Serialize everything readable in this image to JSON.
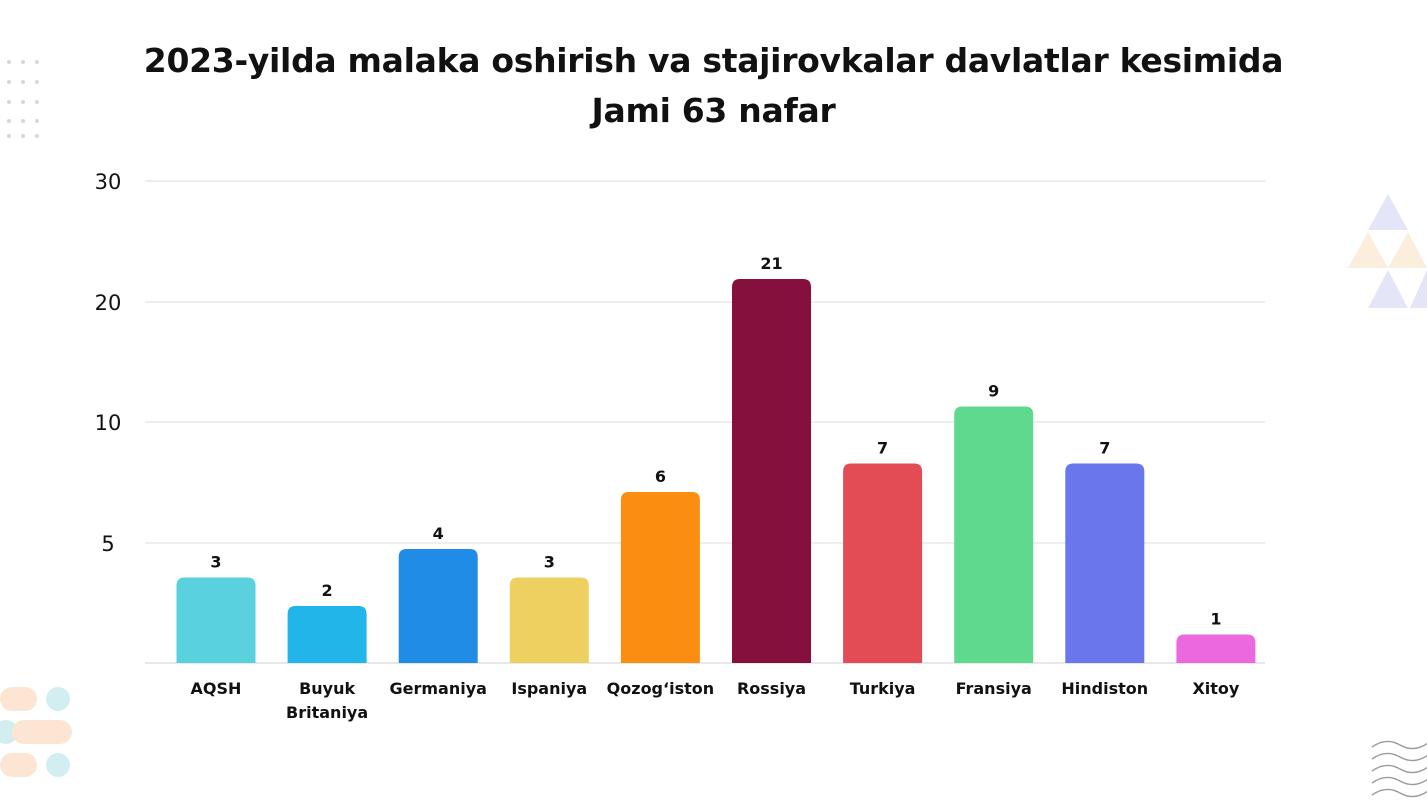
{
  "title_line1": "2023-yilda malaka oshirish va stajirovkalar davlatlar kesimida",
  "title_line2": "Jami 63 nafar",
  "chart_data": {
    "type": "bar",
    "title": "2023-yilda malaka oshirish va stajirovkalar davlatlar kesimida",
    "subtitle": "Jami 63 nafar",
    "categories": [
      "AQSH",
      "Buyuk Britaniya",
      "Germaniya",
      "Ispaniya",
      "Qozog‘iston",
      "Rossiya",
      "Turkiya",
      "Fransiya",
      "Hindiston",
      "Xitoy"
    ],
    "values": [
      3,
      2,
      4,
      3,
      6,
      21,
      7,
      9,
      7,
      1
    ],
    "data_labels": [
      "3",
      "2",
      "4",
      "3",
      "6",
      "21",
      "7",
      "9",
      "7",
      "1"
    ],
    "colors": [
      "#5ad1de",
      "#22b5ea",
      "#218ce6",
      "#eed060",
      "#fb8e10",
      "#86103d",
      "#e34b55",
      "#5fd98d",
      "#6a76ec",
      "#ec68de"
    ],
    "y_ticks": [
      {
        "value": 30,
        "label": "30"
      },
      {
        "value": 20,
        "label": "20"
      },
      {
        "value": 10,
        "label": "10"
      },
      {
        "value": 5,
        "label": "5"
      }
    ],
    "ylim": [
      0,
      30
    ],
    "xlabel": "",
    "ylabel": "",
    "grid": true,
    "legend": "none"
  }
}
